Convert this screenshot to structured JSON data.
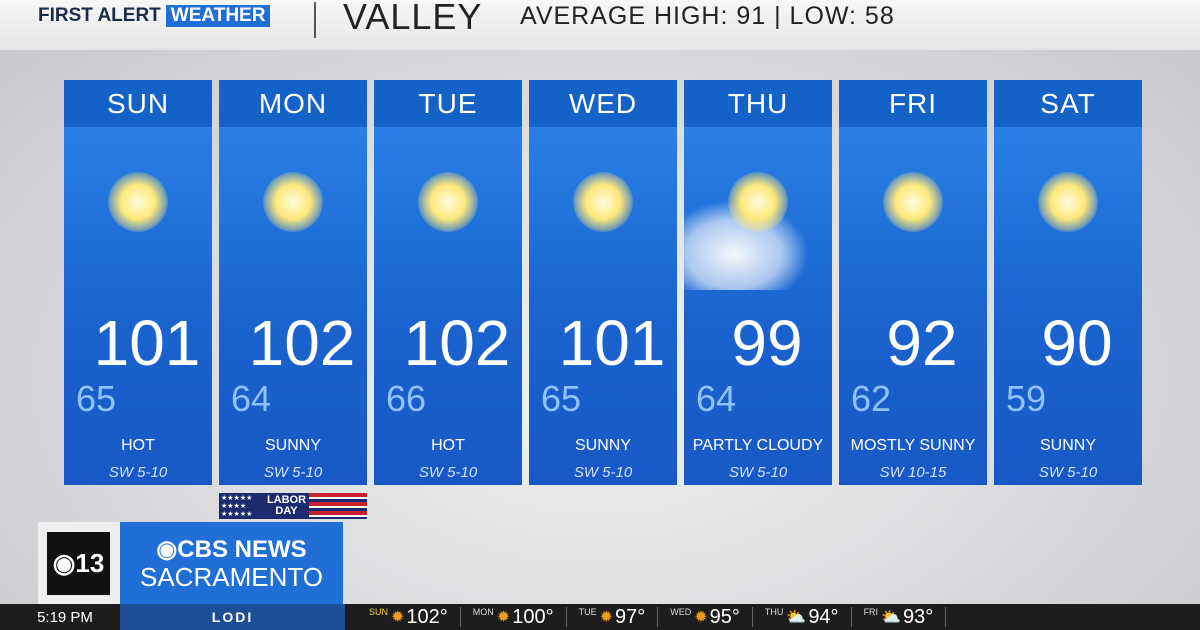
{
  "header": {
    "brand_part1": "FIRST ALERT",
    "brand_part2": "WEATHER",
    "region": "VALLEY",
    "average": "AVERAGE HIGH: 91 | LOW: 58"
  },
  "forecast": [
    {
      "day": "SUN",
      "high": "101",
      "low": "65",
      "condition": "HOT",
      "wind": "SW 5-10",
      "icon": "sun-icon"
    },
    {
      "day": "MON",
      "high": "102",
      "low": "64",
      "condition": "SUNNY",
      "wind": "SW 5-10",
      "icon": "sun-icon"
    },
    {
      "day": "TUE",
      "high": "102",
      "low": "66",
      "condition": "HOT",
      "wind": "SW 5-10",
      "icon": "sun-icon"
    },
    {
      "day": "WED",
      "high": "101",
      "low": "65",
      "condition": "SUNNY",
      "wind": "SW 5-10",
      "icon": "sun-icon"
    },
    {
      "day": "THU",
      "high": "99",
      "low": "64",
      "condition": "PARTLY CLOUDY",
      "wind": "SW 5-10",
      "icon": "partly-cloudy-icon"
    },
    {
      "day": "FRI",
      "high": "92",
      "low": "62",
      "condition": "MOSTLY SUNNY",
      "wind": "SW 10-15",
      "icon": "sun-icon"
    },
    {
      "day": "SAT",
      "high": "90",
      "low": "59",
      "condition": "SUNNY",
      "wind": "SW 5-10",
      "icon": "sun-icon"
    }
  ],
  "holiday": {
    "label_line1": "LABOR",
    "label_line2": "DAY"
  },
  "station": {
    "logo": "13",
    "line1": "CBS NEWS",
    "line2": "SACRAMENTO"
  },
  "ticker": {
    "time": "5:19 PM",
    "city": "LODI",
    "items": [
      {
        "day": "SUN",
        "temp": "102°",
        "icon": "sun-icon"
      },
      {
        "day": "MON",
        "temp": "100°",
        "icon": "sun-icon"
      },
      {
        "day": "TUE",
        "temp": "97°",
        "icon": "sun-icon"
      },
      {
        "day": "WED",
        "temp": "95°",
        "icon": "sun-icon"
      },
      {
        "day": "THU",
        "temp": "94°",
        "icon": "partly-cloudy-icon"
      },
      {
        "day": "FRI",
        "temp": "93°",
        "icon": "partly-cloudy-icon"
      }
    ]
  },
  "colors": {
    "card_blue": "#1a63cf",
    "brand_blue": "#1f6fd6",
    "low_temp": "#8fc4ff"
  }
}
